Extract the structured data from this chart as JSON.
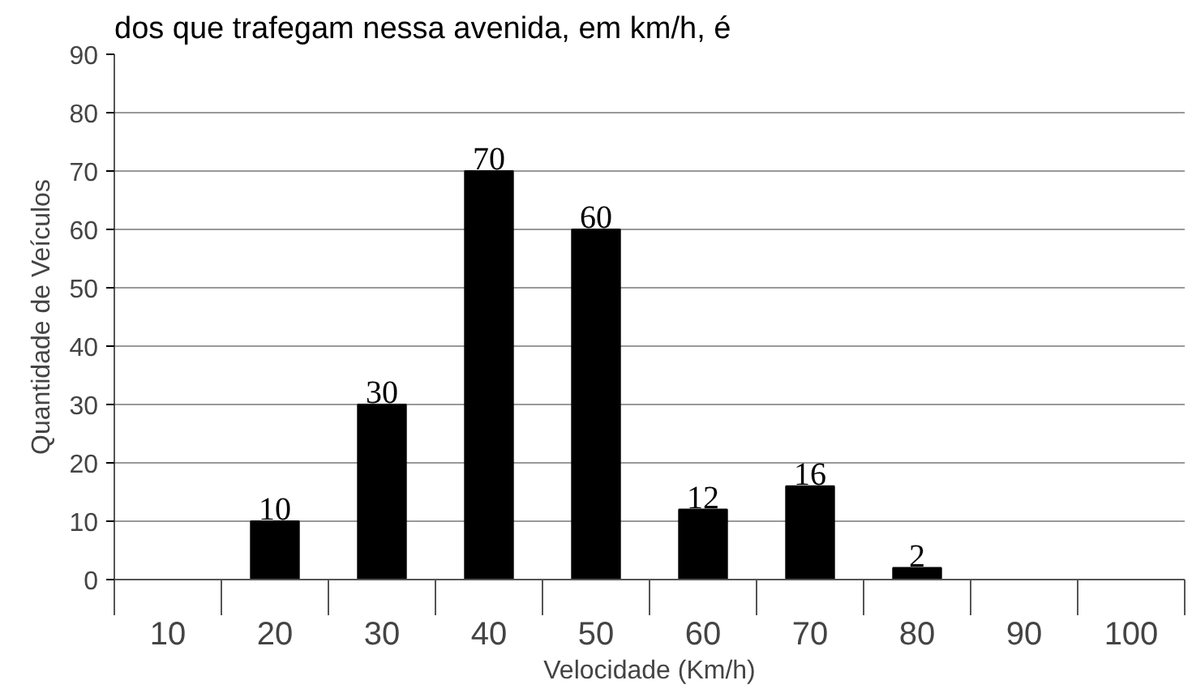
{
  "chart_data": {
    "type": "bar",
    "annotations": [
      "dos que trafegam nessa avenida, em km/h, é"
    ],
    "xlabel": "Velocidade (Km/h)",
    "ylabel": "Quantidade de Veículos",
    "categories": [
      "10",
      "20",
      "30",
      "40",
      "50",
      "60",
      "70",
      "80",
      "90",
      "100"
    ],
    "values": [
      0,
      10,
      30,
      70,
      60,
      12,
      16,
      2,
      0,
      0
    ],
    "value_labels": [
      null,
      "10",
      "30",
      "70",
      "60",
      "12",
      "16",
      "2",
      null,
      null
    ],
    "color": "#000000",
    "ylim": [
      0,
      90
    ],
    "yticks": [
      0,
      10,
      20,
      30,
      40,
      50,
      60,
      70,
      80,
      90
    ],
    "grid": "y"
  }
}
